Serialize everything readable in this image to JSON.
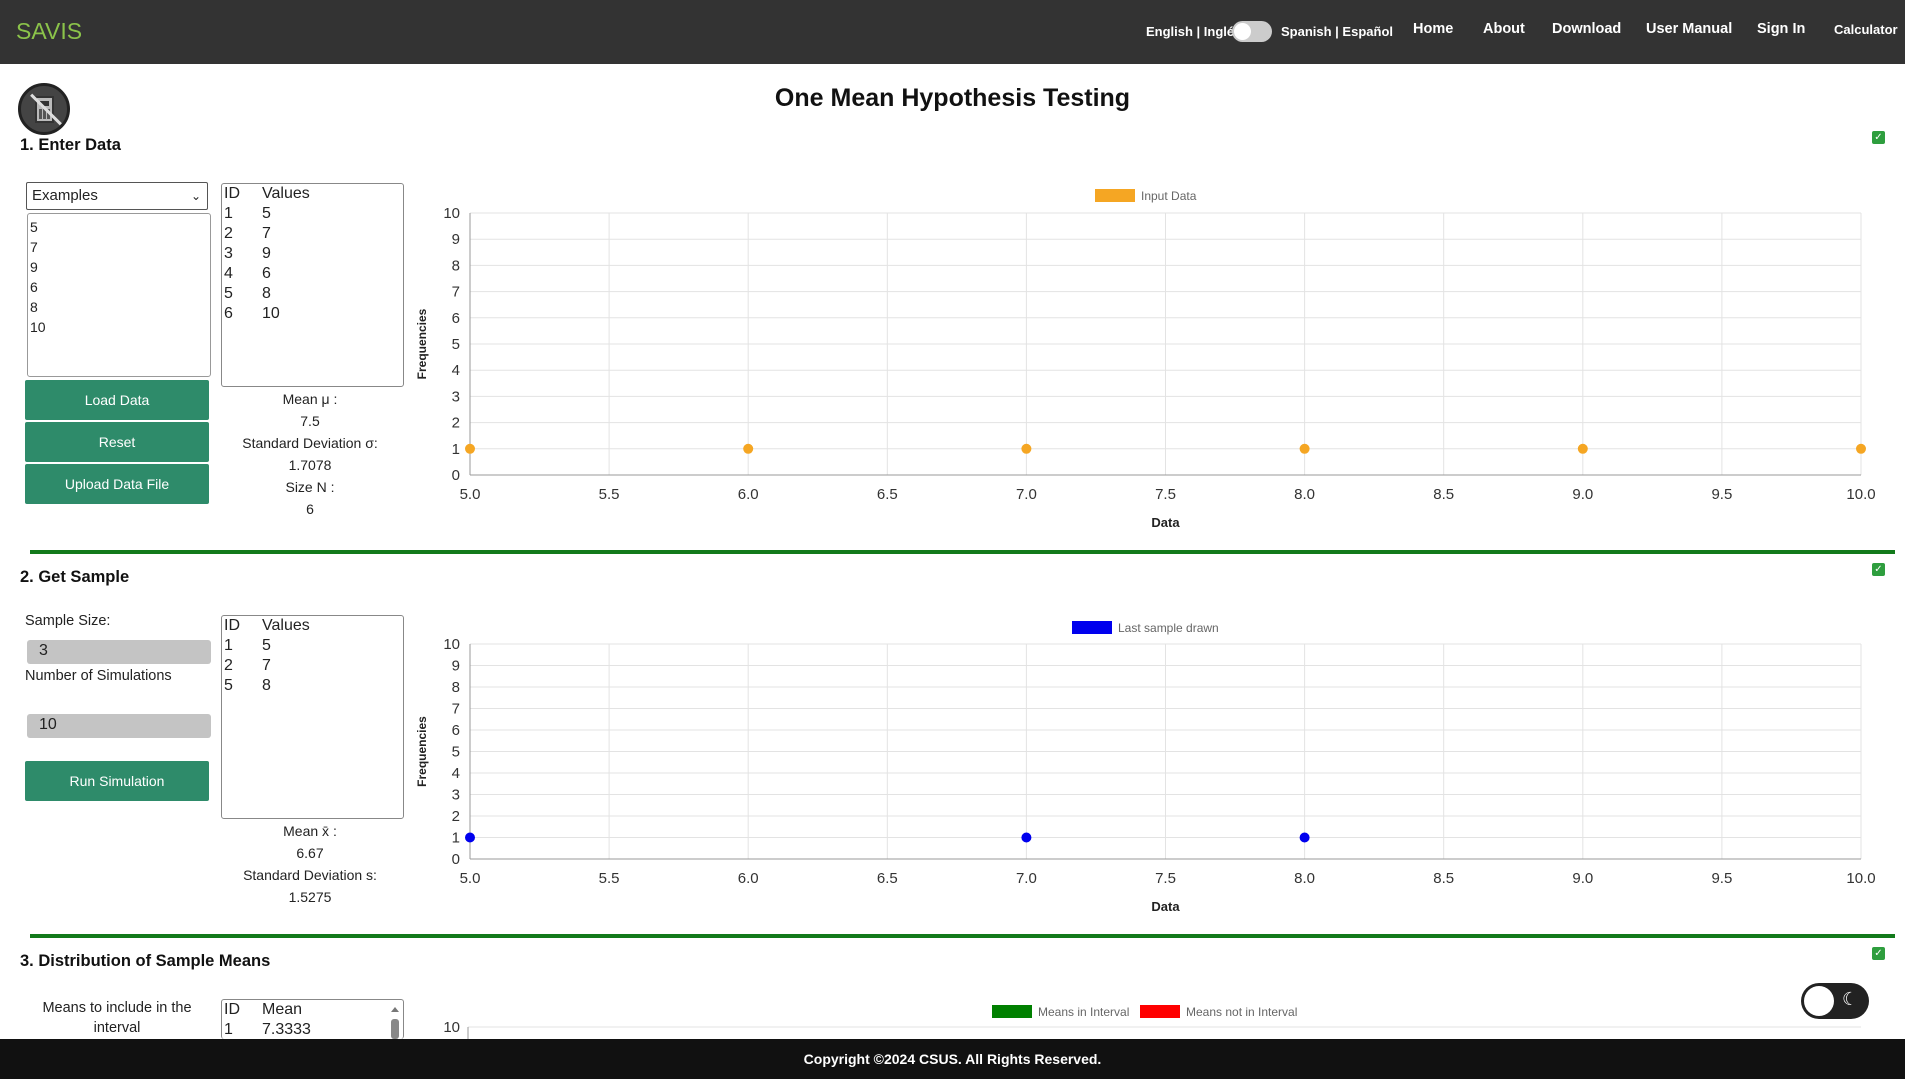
{
  "header": {
    "brand": "SAVIS",
    "lang_en": "English | Inglés",
    "lang_es": "Spanish | Español",
    "nav": [
      "Home",
      "About",
      "Download",
      "User Manual",
      "Sign In",
      "Calculator"
    ]
  },
  "page_title": "One Mean Hypothesis Testing",
  "section1": {
    "title": "1. Enter Data",
    "examples_select": "Examples",
    "textarea_values": [
      "5",
      "7",
      "9",
      "6",
      "8",
      "10"
    ],
    "buttons": {
      "load": "Load Data",
      "reset": "Reset",
      "upload": "Upload Data File"
    },
    "table_header": {
      "id": "ID",
      "values": "Values"
    },
    "rows": [
      {
        "id": "1",
        "value": "5"
      },
      {
        "id": "2",
        "value": "7"
      },
      {
        "id": "3",
        "value": "9"
      },
      {
        "id": "4",
        "value": "6"
      },
      {
        "id": "5",
        "value": "8"
      },
      {
        "id": "6",
        "value": "10"
      }
    ],
    "mean_label": "Mean μ :",
    "mean_value": "7.5",
    "sd_label": "Standard Deviation σ:",
    "sd_value": "1.7078",
    "size_label": "Size N :",
    "size_value": "6"
  },
  "section2": {
    "title": "2. Get Sample",
    "sample_size_label": "Sample Size:",
    "sample_size_value": "3",
    "num_sim_label": "Number of Simulations",
    "num_sim_value": "10",
    "run_button": "Run Simulation",
    "table_header": {
      "id": "ID",
      "values": "Values"
    },
    "rows": [
      {
        "id": "1",
        "value": "5"
      },
      {
        "id": "2",
        "value": "7"
      },
      {
        "id": "5",
        "value": "8"
      }
    ],
    "mean_label": "Mean x̄ :",
    "mean_value": "6.67",
    "sd_label": "Standard Deviation s:",
    "sd_value": "1.5275"
  },
  "section3": {
    "title": "3. Distribution of Sample Means",
    "interval_label": "Means to include in the interval",
    "table_header": {
      "id": "ID",
      "mean": "Mean"
    },
    "rows": [
      {
        "id": "1",
        "mean": "7.3333"
      }
    ],
    "legend_in": "Means in Interval",
    "legend_out": "Means not in Interval",
    "y_visible_tick": "10"
  },
  "footer": "Copyright ©2024 CSUS. All Rights Reserved.",
  "colors": {
    "input": "#f5a623",
    "sample": "#0000ee",
    "in_interval": "#008000",
    "not_interval": "#ff0000"
  },
  "chart_data": [
    {
      "type": "scatter",
      "legend": "Input Data",
      "xlabel": "Data",
      "ylabel": "Frequencies",
      "xlim": [
        5.0,
        10.0
      ],
      "ylim": [
        0,
        10
      ],
      "x_ticks": [
        "5.0",
        "5.5",
        "6.0",
        "6.5",
        "7.0",
        "7.5",
        "8.0",
        "8.5",
        "9.0",
        "9.5",
        "10.0"
      ],
      "y_ticks": [
        "0",
        "1",
        "2",
        "3",
        "4",
        "5",
        "6",
        "7",
        "8",
        "9",
        "10"
      ],
      "points": [
        {
          "x": 5,
          "y": 1
        },
        {
          "x": 6,
          "y": 1
        },
        {
          "x": 7,
          "y": 1
        },
        {
          "x": 8,
          "y": 1
        },
        {
          "x": 9,
          "y": 1
        },
        {
          "x": 10,
          "y": 1
        }
      ]
    },
    {
      "type": "scatter",
      "legend": "Last sample drawn",
      "xlabel": "Data",
      "ylabel": "Frequencies",
      "xlim": [
        5.0,
        10.0
      ],
      "ylim": [
        0,
        10
      ],
      "x_ticks": [
        "5.0",
        "5.5",
        "6.0",
        "6.5",
        "7.0",
        "7.5",
        "8.0",
        "8.5",
        "9.0",
        "9.5",
        "10.0"
      ],
      "y_ticks": [
        "0",
        "1",
        "2",
        "3",
        "4",
        "5",
        "6",
        "7",
        "8",
        "9",
        "10"
      ],
      "points": [
        {
          "x": 5,
          "y": 1
        },
        {
          "x": 7,
          "y": 1
        },
        {
          "x": 8,
          "y": 1
        }
      ]
    }
  ]
}
